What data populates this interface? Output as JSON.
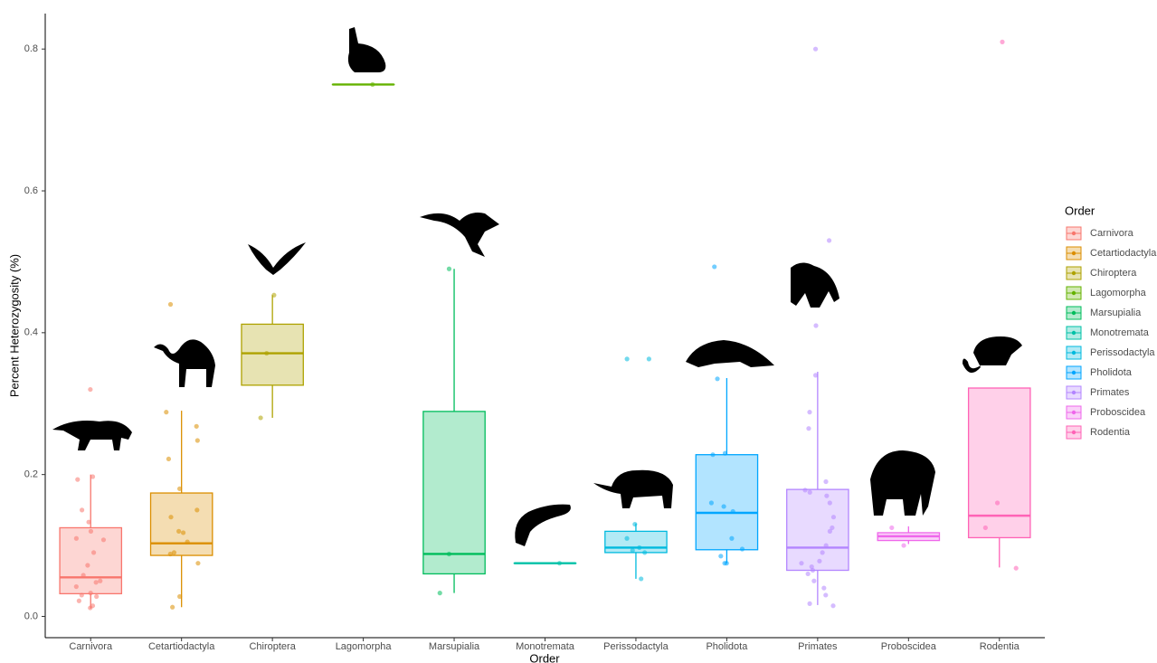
{
  "chart_data": {
    "type": "box",
    "x_label": "Order",
    "y_label": "Percent Heterozygosity (%)",
    "legend_title": "Order",
    "ylim": [
      -0.03,
      0.85
    ],
    "yticks": [
      {
        "value": 0,
        "label": "0.0"
      },
      0.2,
      0.4,
      0.6,
      0.8
    ],
    "legend": "right",
    "series": [
      {
        "name": "Carnivora",
        "color": "#F8766D",
        "box": {
          "min": 0.011,
          "q1": 0.032,
          "median": 0.055,
          "q3": 0.125,
          "max": 0.2
        },
        "points": [
          0.32,
          0.197,
          0.193,
          0.15,
          0.133,
          0.12,
          0.11,
          0.108,
          0.09,
          0.072,
          0.058,
          0.05,
          0.048,
          0.042,
          0.033,
          0.03,
          0.028,
          0.022,
          0.015,
          0.012
        ]
      },
      {
        "name": "Cetartiodactyla",
        "color": "#DB8E00",
        "box": {
          "min": 0.013,
          "q1": 0.086,
          "median": 0.103,
          "q3": 0.174,
          "max": 0.29
        },
        "points": [
          0.44,
          0.288,
          0.268,
          0.248,
          0.222,
          0.18,
          0.15,
          0.14,
          0.12,
          0.118,
          0.105,
          0.09,
          0.088,
          0.075,
          0.028,
          0.013
        ]
      },
      {
        "name": "Chiroptera",
        "color": "#AEA200",
        "box": {
          "min": 0.28,
          "q1": 0.326,
          "median": 0.371,
          "q3": 0.412,
          "max": 0.453
        },
        "points": [
          0.453,
          0.371,
          0.28
        ]
      },
      {
        "name": "Lagomorpha",
        "color": "#64B200",
        "box": {
          "min": 0.75,
          "q1": 0.75,
          "median": 0.75,
          "q3": 0.75,
          "max": 0.75
        },
        "points": [
          0.75
        ]
      },
      {
        "name": "Marsupialia",
        "color": "#00BD5C",
        "box": {
          "min": 0.033,
          "q1": 0.06,
          "median": 0.088,
          "q3": 0.289,
          "max": 0.49
        },
        "points": [
          0.49,
          0.088,
          0.033
        ]
      },
      {
        "name": "Monotremata",
        "color": "#00C1A7",
        "box": {
          "min": 0.075,
          "q1": 0.075,
          "median": 0.075,
          "q3": 0.075,
          "max": 0.075
        },
        "points": [
          0.075
        ]
      },
      {
        "name": "Perissodactyla",
        "color": "#00BADE",
        "box": {
          "min": 0.053,
          "q1": 0.09,
          "median": 0.097,
          "q3": 0.12,
          "max": 0.131
        },
        "points": [
          0.363,
          0.363,
          0.13,
          0.11,
          0.097,
          0.093,
          0.09,
          0.053
        ]
      },
      {
        "name": "Pholidota",
        "color": "#00A6FF",
        "box": {
          "min": 0.075,
          "q1": 0.094,
          "median": 0.146,
          "q3": 0.228,
          "max": 0.336
        },
        "points": [
          0.493,
          0.335,
          0.23,
          0.228,
          0.16,
          0.155,
          0.148,
          0.11,
          0.095,
          0.085,
          0.075,
          0.075
        ]
      },
      {
        "name": "Primates",
        "color": "#B385FF",
        "box": {
          "min": 0.016,
          "q1": 0.065,
          "median": 0.097,
          "q3": 0.179,
          "max": 0.345
        },
        "points": [
          0.8,
          0.53,
          0.41,
          0.34,
          0.288,
          0.265,
          0.19,
          0.178,
          0.175,
          0.17,
          0.16,
          0.14,
          0.125,
          0.12,
          0.1,
          0.09,
          0.078,
          0.075,
          0.07,
          0.065,
          0.06,
          0.05,
          0.04,
          0.03,
          0.018,
          0.015
        ]
      },
      {
        "name": "Proboscidea",
        "color": "#EF67EB",
        "box": {
          "min": 0.102,
          "q1": 0.107,
          "median": 0.113,
          "q3": 0.118,
          "max": 0.127
        },
        "points": [
          0.125,
          0.1
        ]
      },
      {
        "name": "Rodentia",
        "color": "#FF63B6",
        "box": {
          "min": 0.069,
          "q1": 0.111,
          "median": 0.142,
          "q3": 0.322,
          "max": 0.322
        },
        "points": [
          0.81,
          0.16,
          0.125,
          0.068
        ]
      }
    ]
  }
}
